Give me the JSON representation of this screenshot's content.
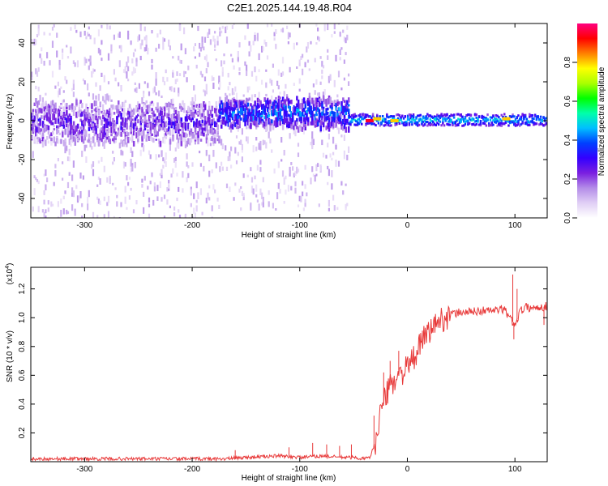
{
  "title": "C2E1.2025.144.19.48.R04",
  "chart_data": [
    {
      "type": "heatmap",
      "xlabel": "Height of straight line (km)",
      "ylabel": "Frequency (Hz)",
      "xlim": [
        -350,
        130
      ],
      "ylim": [
        -50,
        50
      ],
      "xticks": [
        -300,
        -200,
        -100,
        0,
        100
      ],
      "yticks": [
        -40,
        -20,
        0,
        20,
        40
      ],
      "colorbar": {
        "label": "Normalized spectral amplitude",
        "range": [
          0,
          1
        ],
        "ticks": [
          "0.0",
          "0.2",
          "0.4",
          "0.6",
          "0.8"
        ],
        "colormap": [
          "#ffffff",
          "#e0cff5",
          "#b48ce8",
          "#7a1fe0",
          "#3300ff",
          "#0040ff",
          "#00bfff",
          "#00ffaa",
          "#00ff00",
          "#aaff00",
          "#ffff00",
          "#ff8000",
          "#ff0000",
          "#ff0080"
        ]
      },
      "bands": [
        {
          "from": -350,
          "to": -175,
          "center_hz": 0,
          "core_halfwidth_hz": 10,
          "scatter_halfwidth_hz": 50,
          "level": 0.25
        },
        {
          "from": -175,
          "to": -55,
          "center_hz": 5,
          "core_halfwidth_hz": 7,
          "scatter_halfwidth_hz": 50,
          "level": 0.4
        },
        {
          "from": -55,
          "to": 130,
          "center_hz": 1,
          "core_halfwidth_hz": 3,
          "scatter_halfwidth_hz": 0,
          "level": 0.45
        }
      ],
      "hotspots": [
        {
          "x": -35,
          "y": 0,
          "level": 0.95
        },
        {
          "x": -28,
          "y": 1,
          "level": 0.8
        },
        {
          "x": -12,
          "y": 0,
          "level": 0.8
        },
        {
          "x": 92,
          "y": 1,
          "level": 0.8
        }
      ]
    },
    {
      "type": "line",
      "xlabel": "Height of straight line (km)",
      "ylabel": "SNR (10 * v/v)",
      "yscale_label": "(x10",
      "yscale_exp": "4",
      "xlim": [
        -350,
        130
      ],
      "ylim": [
        0,
        1.35
      ],
      "xticks": [
        -300,
        -200,
        -100,
        0,
        100
      ],
      "yticks": [
        "0.2",
        "0.4",
        "0.6",
        "0.8",
        "1.0",
        "1.2"
      ],
      "color": "#e83a3a",
      "series": [
        {
          "x": [
            -350,
            -300,
            -250,
            -200,
            -170,
            -150,
            -120,
            -100,
            -80,
            -60,
            -50,
            -40,
            -35,
            -30,
            -25,
            -20,
            -15,
            -10,
            -5,
            0,
            5,
            10,
            15,
            20,
            25,
            30,
            35,
            40,
            50,
            60,
            70,
            80,
            90,
            95,
            100,
            105,
            110,
            120,
            130
          ],
          "y": [
            0.02,
            0.02,
            0.02,
            0.02,
            0.02,
            0.03,
            0.04,
            0.03,
            0.04,
            0.03,
            0.03,
            0.02,
            0.03,
            0.12,
            0.35,
            0.45,
            0.55,
            0.58,
            0.62,
            0.65,
            0.7,
            0.78,
            0.85,
            0.9,
            0.95,
            0.98,
            1.0,
            1.02,
            1.04,
            1.04,
            1.05,
            1.05,
            1.06,
            1.0,
            0.95,
            1.05,
            1.07,
            1.07,
            1.08
          ]
        }
      ],
      "spikes": [
        {
          "x": -160,
          "y": 0.08
        },
        {
          "x": -110,
          "y": 0.1
        },
        {
          "x": -88,
          "y": 0.13
        },
        {
          "x": -75,
          "y": 0.12
        },
        {
          "x": -63,
          "y": 0.11
        },
        {
          "x": -52,
          "y": 0.12
        },
        {
          "x": -31,
          "y": 0.32
        },
        {
          "x": -22,
          "y": 0.62
        },
        {
          "x": -16,
          "y": 0.7
        },
        {
          "x": -8,
          "y": 0.77
        },
        {
          "x": 4,
          "y": 0.78
        },
        {
          "x": 14,
          "y": 0.91
        },
        {
          "x": 98,
          "y": 1.3
        },
        {
          "x": 99,
          "y": 0.85
        },
        {
          "x": 102,
          "y": 1.2
        },
        {
          "x": 127,
          "y": 0.95
        }
      ]
    }
  ]
}
